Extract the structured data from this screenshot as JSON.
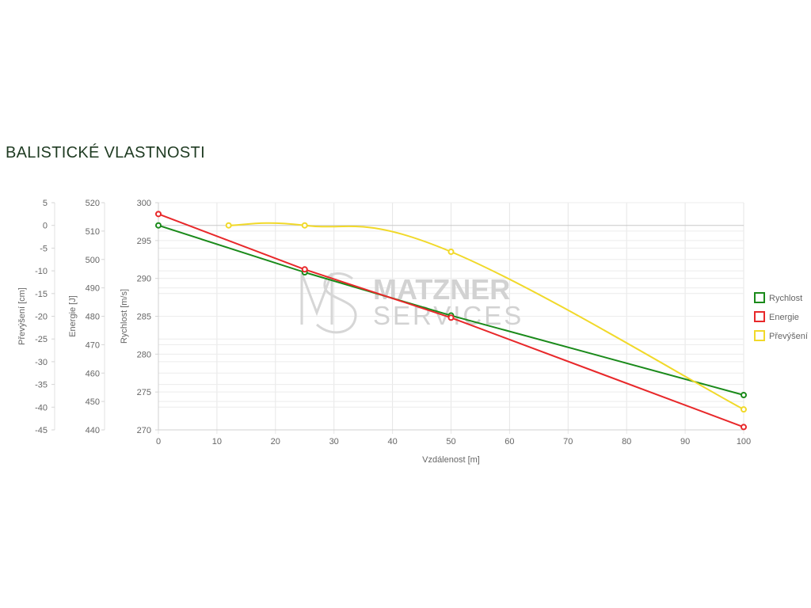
{
  "page": {
    "title": "BALISTICKÉ VLASTNOSTI",
    "watermark": {
      "line1": "MATZNER",
      "line2": "SERVICES"
    }
  },
  "chart_data": {
    "type": "line",
    "x": [
      0,
      25,
      50,
      100
    ],
    "xlabel": "Vzdálenost [m]",
    "xlim": [
      0,
      100
    ],
    "xticks": [
      0,
      10,
      20,
      30,
      40,
      50,
      60,
      70,
      80,
      90,
      100
    ],
    "axes": {
      "prevyseni": {
        "label": "Převýšení [cm]",
        "range": [
          -45,
          5
        ],
        "ticks": [
          5,
          0,
          -5,
          -10,
          -15,
          -20,
          -25,
          -30,
          -35,
          -40,
          -45
        ]
      },
      "energie": {
        "label": "Energie [J]",
        "range": [
          440,
          520
        ],
        "ticks": [
          520,
          510,
          500,
          490,
          480,
          470,
          460,
          450,
          440
        ]
      },
      "rychlost": {
        "label": "Rychlost [m/s]",
        "range": [
          270,
          300
        ],
        "ticks": [
          300,
          295,
          290,
          285,
          280,
          275,
          270
        ]
      }
    },
    "series": [
      {
        "name": "Rychlost",
        "color": "#1a8a1a",
        "axis": "rychlost",
        "points": [
          [
            0,
            297
          ],
          [
            25,
            290.8
          ],
          [
            50,
            285.1
          ],
          [
            100,
            274.6
          ]
        ],
        "smooth": false
      },
      {
        "name": "Energie",
        "color": "#e8282a",
        "axis": "energie",
        "points": [
          [
            0,
            516
          ],
          [
            25,
            496.5
          ],
          [
            50,
            479.5
          ],
          [
            100,
            441
          ]
        ],
        "smooth": false
      },
      {
        "name": "Převýšení",
        "color": "#f1d92a",
        "axis": "prevyseni",
        "points": [
          [
            12,
            0
          ],
          [
            25,
            0
          ],
          [
            50,
            -5.8
          ],
          [
            100,
            -40.5
          ]
        ],
        "smooth": true
      }
    ],
    "grid": true,
    "legend": "right"
  }
}
